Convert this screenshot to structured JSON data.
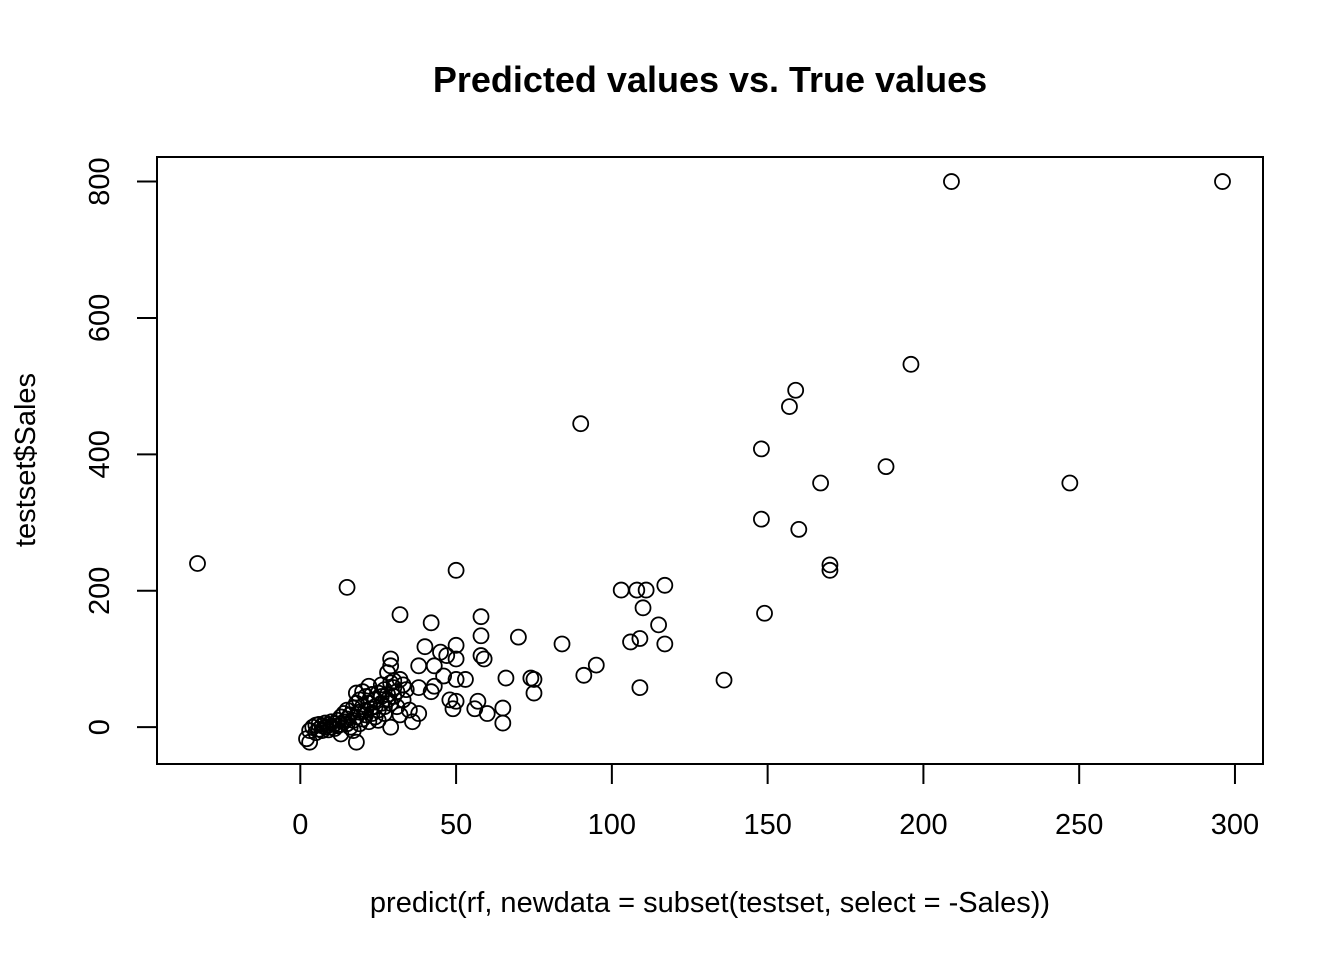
{
  "chart_data": {
    "type": "scatter",
    "title": "Predicted values vs. True values",
    "xlabel": "predict(rf, newdata = subset(testset, select = -Sales))",
    "ylabel": "testset$Sales",
    "xlim": [
      -46,
      309
    ],
    "ylim": [
      -54,
      836
    ],
    "xticks": [
      0,
      50,
      100,
      150,
      200,
      250,
      300
    ],
    "yticks": [
      0,
      200,
      400,
      600,
      800
    ],
    "xtick_labels": [
      "0",
      "50",
      "100",
      "150",
      "200",
      "250",
      "300"
    ],
    "ytick_labels": [
      "0",
      "200",
      "400",
      "600",
      "800"
    ],
    "grid": false,
    "marker": "open-circle",
    "marker_color": "#000000",
    "points": [
      [
        -33,
        240
      ],
      [
        15,
        205
      ],
      [
        50,
        230
      ],
      [
        32,
        165
      ],
      [
        42,
        153
      ],
      [
        58,
        162
      ],
      [
        58,
        134
      ],
      [
        40,
        118
      ],
      [
        50,
        120
      ],
      [
        45,
        110
      ],
      [
        58,
        105
      ],
      [
        59,
        100
      ],
      [
        47,
        105
      ],
      [
        50,
        100
      ],
      [
        43,
        90
      ],
      [
        38,
        90
      ],
      [
        29,
        100
      ],
      [
        29,
        90
      ],
      [
        28,
        80
      ],
      [
        46,
        75
      ],
      [
        50,
        70
      ],
      [
        53,
        70
      ],
      [
        43,
        60
      ],
      [
        38,
        58
      ],
      [
        42,
        52
      ],
      [
        48,
        40
      ],
      [
        50,
        38
      ],
      [
        49,
        27
      ],
      [
        57,
        38
      ],
      [
        56,
        27
      ],
      [
        60,
        20
      ],
      [
        65,
        28
      ],
      [
        65,
        6
      ],
      [
        66,
        72
      ],
      [
        70,
        132
      ],
      [
        74,
        72
      ],
      [
        75,
        70
      ],
      [
        75,
        50
      ],
      [
        84,
        122
      ],
      [
        90,
        445
      ],
      [
        91,
        76
      ],
      [
        95,
        91
      ],
      [
        103,
        201
      ],
      [
        108,
        201
      ],
      [
        111,
        201
      ],
      [
        117,
        208
      ],
      [
        110,
        175
      ],
      [
        115,
        150
      ],
      [
        106,
        125
      ],
      [
        109,
        130
      ],
      [
        117,
        122
      ],
      [
        109,
        58
      ],
      [
        136,
        69
      ],
      [
        148,
        408
      ],
      [
        148,
        305
      ],
      [
        149,
        167
      ],
      [
        157,
        470
      ],
      [
        159,
        494
      ],
      [
        160,
        290
      ],
      [
        167,
        358
      ],
      [
        170,
        238
      ],
      [
        170,
        230
      ],
      [
        188,
        382
      ],
      [
        196,
        532
      ],
      [
        209,
        800
      ],
      [
        247,
        358
      ],
      [
        296,
        800
      ],
      [
        2,
        -17
      ],
      [
        3,
        -22
      ],
      [
        3,
        -5
      ],
      [
        4,
        0
      ],
      [
        5,
        3
      ],
      [
        5,
        -8
      ],
      [
        6,
        -3
      ],
      [
        6,
        4
      ],
      [
        7,
        2
      ],
      [
        7,
        -5
      ],
      [
        8,
        0
      ],
      [
        8,
        6
      ],
      [
        9,
        -4
      ],
      [
        9,
        3
      ],
      [
        10,
        8
      ],
      [
        10,
        0
      ],
      [
        11,
        5
      ],
      [
        11,
        -2
      ],
      [
        12,
        10
      ],
      [
        12,
        2
      ],
      [
        13,
        15
      ],
      [
        13,
        -10
      ],
      [
        13,
        4
      ],
      [
        14,
        8
      ],
      [
        14,
        20
      ],
      [
        15,
        5
      ],
      [
        15,
        12
      ],
      [
        15,
        25
      ],
      [
        16,
        18
      ],
      [
        16,
        0
      ],
      [
        17,
        10
      ],
      [
        17,
        -5
      ],
      [
        17,
        28
      ],
      [
        18,
        15
      ],
      [
        18,
        50
      ],
      [
        18,
        -22
      ],
      [
        18,
        35
      ],
      [
        19,
        22
      ],
      [
        19,
        5
      ],
      [
        19,
        40
      ],
      [
        20,
        12
      ],
      [
        20,
        30
      ],
      [
        20,
        52
      ],
      [
        21,
        18
      ],
      [
        21,
        25
      ],
      [
        21,
        45
      ],
      [
        22,
        8
      ],
      [
        22,
        35
      ],
      [
        22,
        60
      ],
      [
        23,
        20
      ],
      [
        23,
        48
      ],
      [
        24,
        15
      ],
      [
        24,
        40
      ],
      [
        24,
        30
      ],
      [
        25,
        25
      ],
      [
        25,
        10
      ],
      [
        25,
        50
      ],
      [
        26,
        35
      ],
      [
        26,
        45
      ],
      [
        27,
        30
      ],
      [
        27,
        20
      ],
      [
        27,
        55
      ],
      [
        28,
        40
      ],
      [
        28,
        48
      ],
      [
        29,
        35
      ],
      [
        29,
        0
      ],
      [
        29,
        65
      ],
      [
        30,
        45
      ],
      [
        30,
        58
      ],
      [
        31,
        30
      ],
      [
        31,
        52
      ],
      [
        32,
        70
      ],
      [
        32,
        18
      ],
      [
        33,
        40
      ],
      [
        33,
        62
      ],
      [
        34,
        55
      ],
      [
        35,
        25
      ],
      [
        36,
        8
      ],
      [
        38,
        20
      ],
      [
        26,
        62
      ],
      [
        30,
        68
      ]
    ]
  }
}
